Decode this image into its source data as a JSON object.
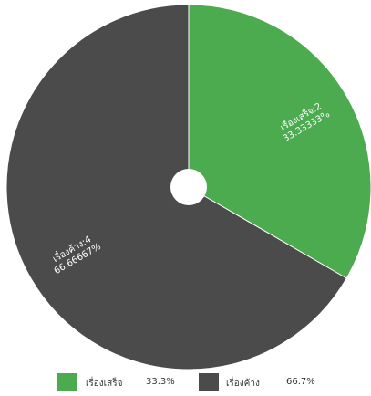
{
  "chart_data": {
    "type": "pie",
    "slices": [
      {
        "name": "เรื่องเสร็จ",
        "value": 2,
        "percent": 33.33333,
        "color": "#4caa4f",
        "label_line1": "เรื่องเสร็จ:2",
        "label_line2": "33.33333%",
        "legend_pct": "33.3%"
      },
      {
        "name": "เรื่องค้าง",
        "value": 4,
        "percent": 66.66667,
        "color": "#4b4b4b",
        "label_line1": "เรื่องค้าง:4",
        "label_line2": "66.66667%",
        "legend_pct": "66.7%"
      }
    ],
    "legend_position": "bottom",
    "center_hole": true
  },
  "legend": {
    "items": [
      {
        "label": "เรื่องเสร็จ",
        "value": "33.3%",
        "color": "#4caa4f"
      },
      {
        "label": "เรื่องค้าง",
        "value": "66.7%",
        "color": "#4b4b4b"
      }
    ]
  }
}
